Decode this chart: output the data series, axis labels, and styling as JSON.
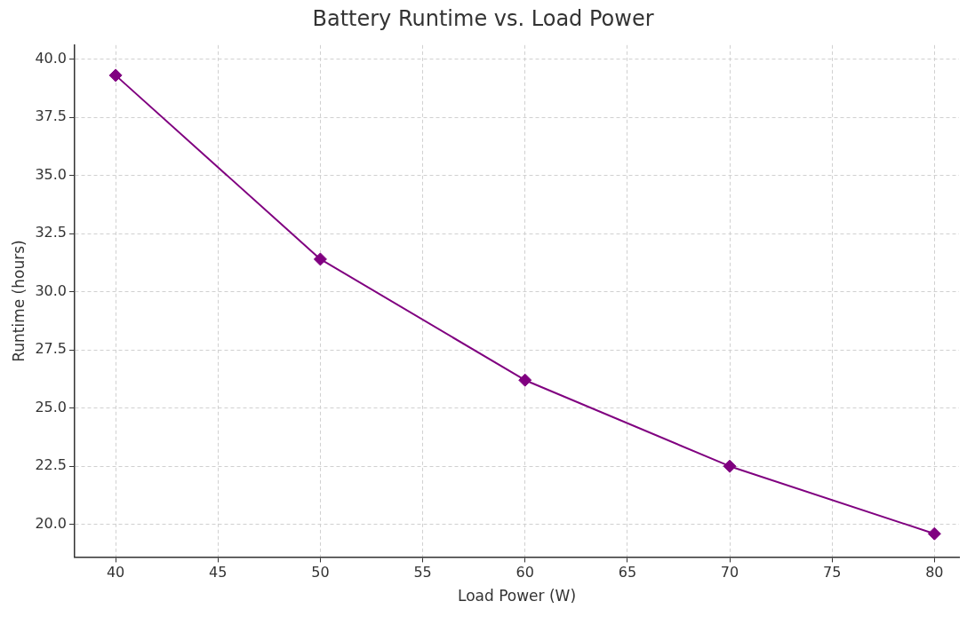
{
  "chart_data": {
    "type": "line",
    "title": "Battery Runtime vs. Load Power",
    "xlabel": "Load Power (W)",
    "ylabel": "Runtime (hours)",
    "x": [
      40,
      50,
      60,
      70,
      80
    ],
    "series": [
      {
        "color": "#800080",
        "values": [
          39.3,
          31.4,
          26.2,
          22.5,
          19.6
        ]
      }
    ],
    "xlim": [
      38,
      81.2
    ],
    "xticks": [
      40,
      45,
      50,
      55,
      60,
      65,
      70,
      75,
      80
    ],
    "ylim": [
      18.6,
      40.6
    ],
    "yticks": [
      {
        "value": 20,
        "label": "20.0"
      },
      {
        "value": 22.5,
        "label": "22.5"
      },
      {
        "value": 25,
        "label": "25.0"
      },
      {
        "value": 27.5,
        "label": "27.5"
      },
      {
        "value": 30,
        "label": "30.0"
      },
      {
        "value": 32.5,
        "label": "32.5"
      },
      {
        "value": 35,
        "label": "35.0"
      },
      {
        "value": 37.5,
        "label": "37.5"
      },
      {
        "value": 40,
        "label": "40.0"
      }
    ],
    "grid": true,
    "marker": "diamond",
    "line_style": "solid",
    "legend": false
  }
}
